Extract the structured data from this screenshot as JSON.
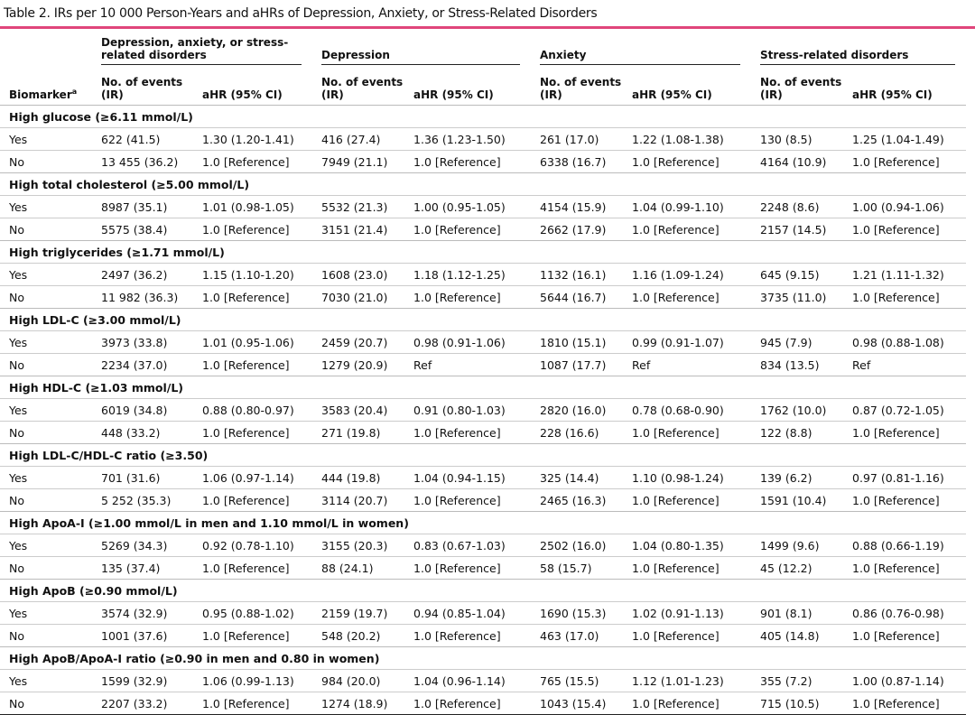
{
  "title": "Table 2. IRs per 10 000 Person-Years and aHRs of Depression, Anxiety, or Stress-Related Disorders",
  "header": {
    "biomarker": "Biomarker",
    "biomarker_note": "a",
    "groups": [
      "Depression, anxiety, or stress-related disorders",
      "Depression",
      "Anxiety",
      "Stress-related disorders"
    ],
    "columns": [
      "No. of events (IR)",
      "aHR (95% CI)",
      "No. of events (IR)",
      "aHR (95% CI)",
      "No. of events (IR)",
      "aHR (95% CI)",
      "No. of events (IR)",
      "aHR (95% CI)"
    ]
  },
  "sections": [
    {
      "label": "High glucose (≥6.11 mmol/L)",
      "rows": [
        [
          "Yes",
          "622 (41.5)",
          "1.30 (1.20-1.41)",
          "416 (27.4)",
          "1.36 (1.23-1.50)",
          "261 (17.0)",
          "1.22 (1.08-1.38)",
          "130 (8.5)",
          "1.25 (1.04-1.49)"
        ],
        [
          "No",
          "13 455 (36.2)",
          "1.0 [Reference]",
          "7949 (21.1)",
          "1.0 [Reference]",
          "6338 (16.7)",
          "1.0 [Reference]",
          "4164 (10.9)",
          "1.0 [Reference]"
        ]
      ]
    },
    {
      "label": "High total cholesterol (≥5.00 mmol/L)",
      "rows": [
        [
          "Yes",
          "8987 (35.1)",
          "1.01 (0.98-1.05)",
          "5532 (21.3)",
          "1.00 (0.95-1.05)",
          "4154 (15.9)",
          "1.04 (0.99-1.10)",
          "2248 (8.6)",
          "1.00 (0.94-1.06)"
        ],
        [
          "No",
          "5575 (38.4)",
          "1.0 [Reference]",
          "3151 (21.4)",
          "1.0 [Reference]",
          "2662 (17.9)",
          "1.0 [Reference]",
          "2157 (14.5)",
          "1.0 [Reference]"
        ]
      ]
    },
    {
      "label": "High triglycerides (≥1.71 mmol/L)",
      "rows": [
        [
          "Yes",
          "2497 (36.2)",
          "1.15 (1.10-1.20)",
          "1608 (23.0)",
          "1.18 (1.12-1.25)",
          "1132 (16.1)",
          "1.16 (1.09-1.24)",
          "645 (9.15)",
          "1.21 (1.11-1.32)"
        ],
        [
          "No",
          "11 982 (36.3)",
          "1.0 [Reference]",
          "7030 (21.0)",
          "1.0 [Reference]",
          "5644 (16.7)",
          "1.0 [Reference]",
          "3735 (11.0)",
          "1.0 [Reference]"
        ]
      ]
    },
    {
      "label": "High LDL-C (≥3.00 mmol/L)",
      "rows": [
        [
          "Yes",
          "3973 (33.8)",
          "1.01 (0.95-1.06)",
          "2459 (20.7)",
          "0.98 (0.91-1.06)",
          "1810 (15.1)",
          "0.99 (0.91-1.07)",
          "945 (7.9)",
          "0.98 (0.88-1.08)"
        ],
        [
          "No",
          "2234 (37.0)",
          "1.0 [Reference]",
          "1279 (20.9)",
          "Ref",
          "1087 (17.7)",
          "Ref",
          "834 (13.5)",
          "Ref"
        ]
      ]
    },
    {
      "label": "High HDL-C (≥1.03 mmol/L)",
      "rows": [
        [
          "Yes",
          "6019 (34.8)",
          "0.88 (0.80-0.97)",
          "3583 (20.4)",
          "0.91 (0.80-1.03)",
          "2820 (16.0)",
          "0.78 (0.68-0.90)",
          "1762 (10.0)",
          "0.87 (0.72-1.05)"
        ],
        [
          "No",
          "448 (33.2)",
          "1.0 [Reference]",
          "271 (19.8)",
          "1.0 [Reference]",
          "228 (16.6)",
          "1.0 [Reference]",
          "122 (8.8)",
          "1.0 [Reference]"
        ]
      ]
    },
    {
      "label": "High LDL-C/HDL-C ratio (≥3.50)",
      "rows": [
        [
          "Yes",
          "701 (31.6)",
          "1.06 (0.97-1.14)",
          "444 (19.8)",
          "1.04 (0.94-1.15)",
          "325 (14.4)",
          "1.10 (0.98-1.24)",
          "139 (6.2)",
          "0.97 (0.81-1.16)"
        ],
        [
          "No",
          "5 252 (35.3)",
          "1.0 [Reference]",
          "3114 (20.7)",
          "1.0 [Reference]",
          "2465 (16.3)",
          "1.0 [Reference]",
          "1591 (10.4)",
          "1.0 [Reference]"
        ]
      ]
    },
    {
      "label": "High ApoA-I (≥1.00 mmol/L in men and 1.10 mmol/L in women)",
      "rows": [
        [
          "Yes",
          "5269 (34.3)",
          "0.92 (0.78-1.10)",
          "3155 (20.3)",
          "0.83 (0.67-1.03)",
          "2502 (16.0)",
          "1.04 (0.80-1.35)",
          "1499 (9.6)",
          "0.88 (0.66-1.19)"
        ],
        [
          "No",
          "135 (37.4)",
          "1.0 [Reference]",
          "88 (24.1)",
          "1.0 [Reference]",
          "58 (15.7)",
          "1.0 [Reference]",
          "45 (12.2)",
          "1.0 [Reference]"
        ]
      ]
    },
    {
      "label": "High ApoB (≥0.90 mmol/L)",
      "rows": [
        [
          "Yes",
          "3574 (32.9)",
          "0.95 (0.88-1.02)",
          "2159 (19.7)",
          "0.94 (0.85-1.04)",
          "1690 (15.3)",
          "1.02 (0.91-1.13)",
          "901 (8.1)",
          "0.86 (0.76-0.98)"
        ],
        [
          "No",
          "1001 (37.6)",
          "1.0 [Reference]",
          "548 (20.2)",
          "1.0 [Reference]",
          "463 (17.0)",
          "1.0 [Reference]",
          "405 (14.8)",
          "1.0 [Reference]"
        ]
      ]
    },
    {
      "label": "High ApoB/ApoA-I ratio (≥0.90 in men and 0.80 in women)",
      "rows": [
        [
          "Yes",
          "1599 (32.9)",
          "1.06 (0.99-1.13)",
          "984 (20.0)",
          "1.04 (0.96-1.14)",
          "765 (15.5)",
          "1.12 (1.01-1.23)",
          "355 (7.2)",
          "1.00 (0.87-1.14)"
        ],
        [
          "No",
          "2207 (33.2)",
          "1.0 [Reference]",
          "1274 (18.9)",
          "1.0 [Reference]",
          "1043 (15.4)",
          "1.0 [Reference]",
          "715 (10.5)",
          "1.0 [Reference]"
        ]
      ]
    }
  ]
}
